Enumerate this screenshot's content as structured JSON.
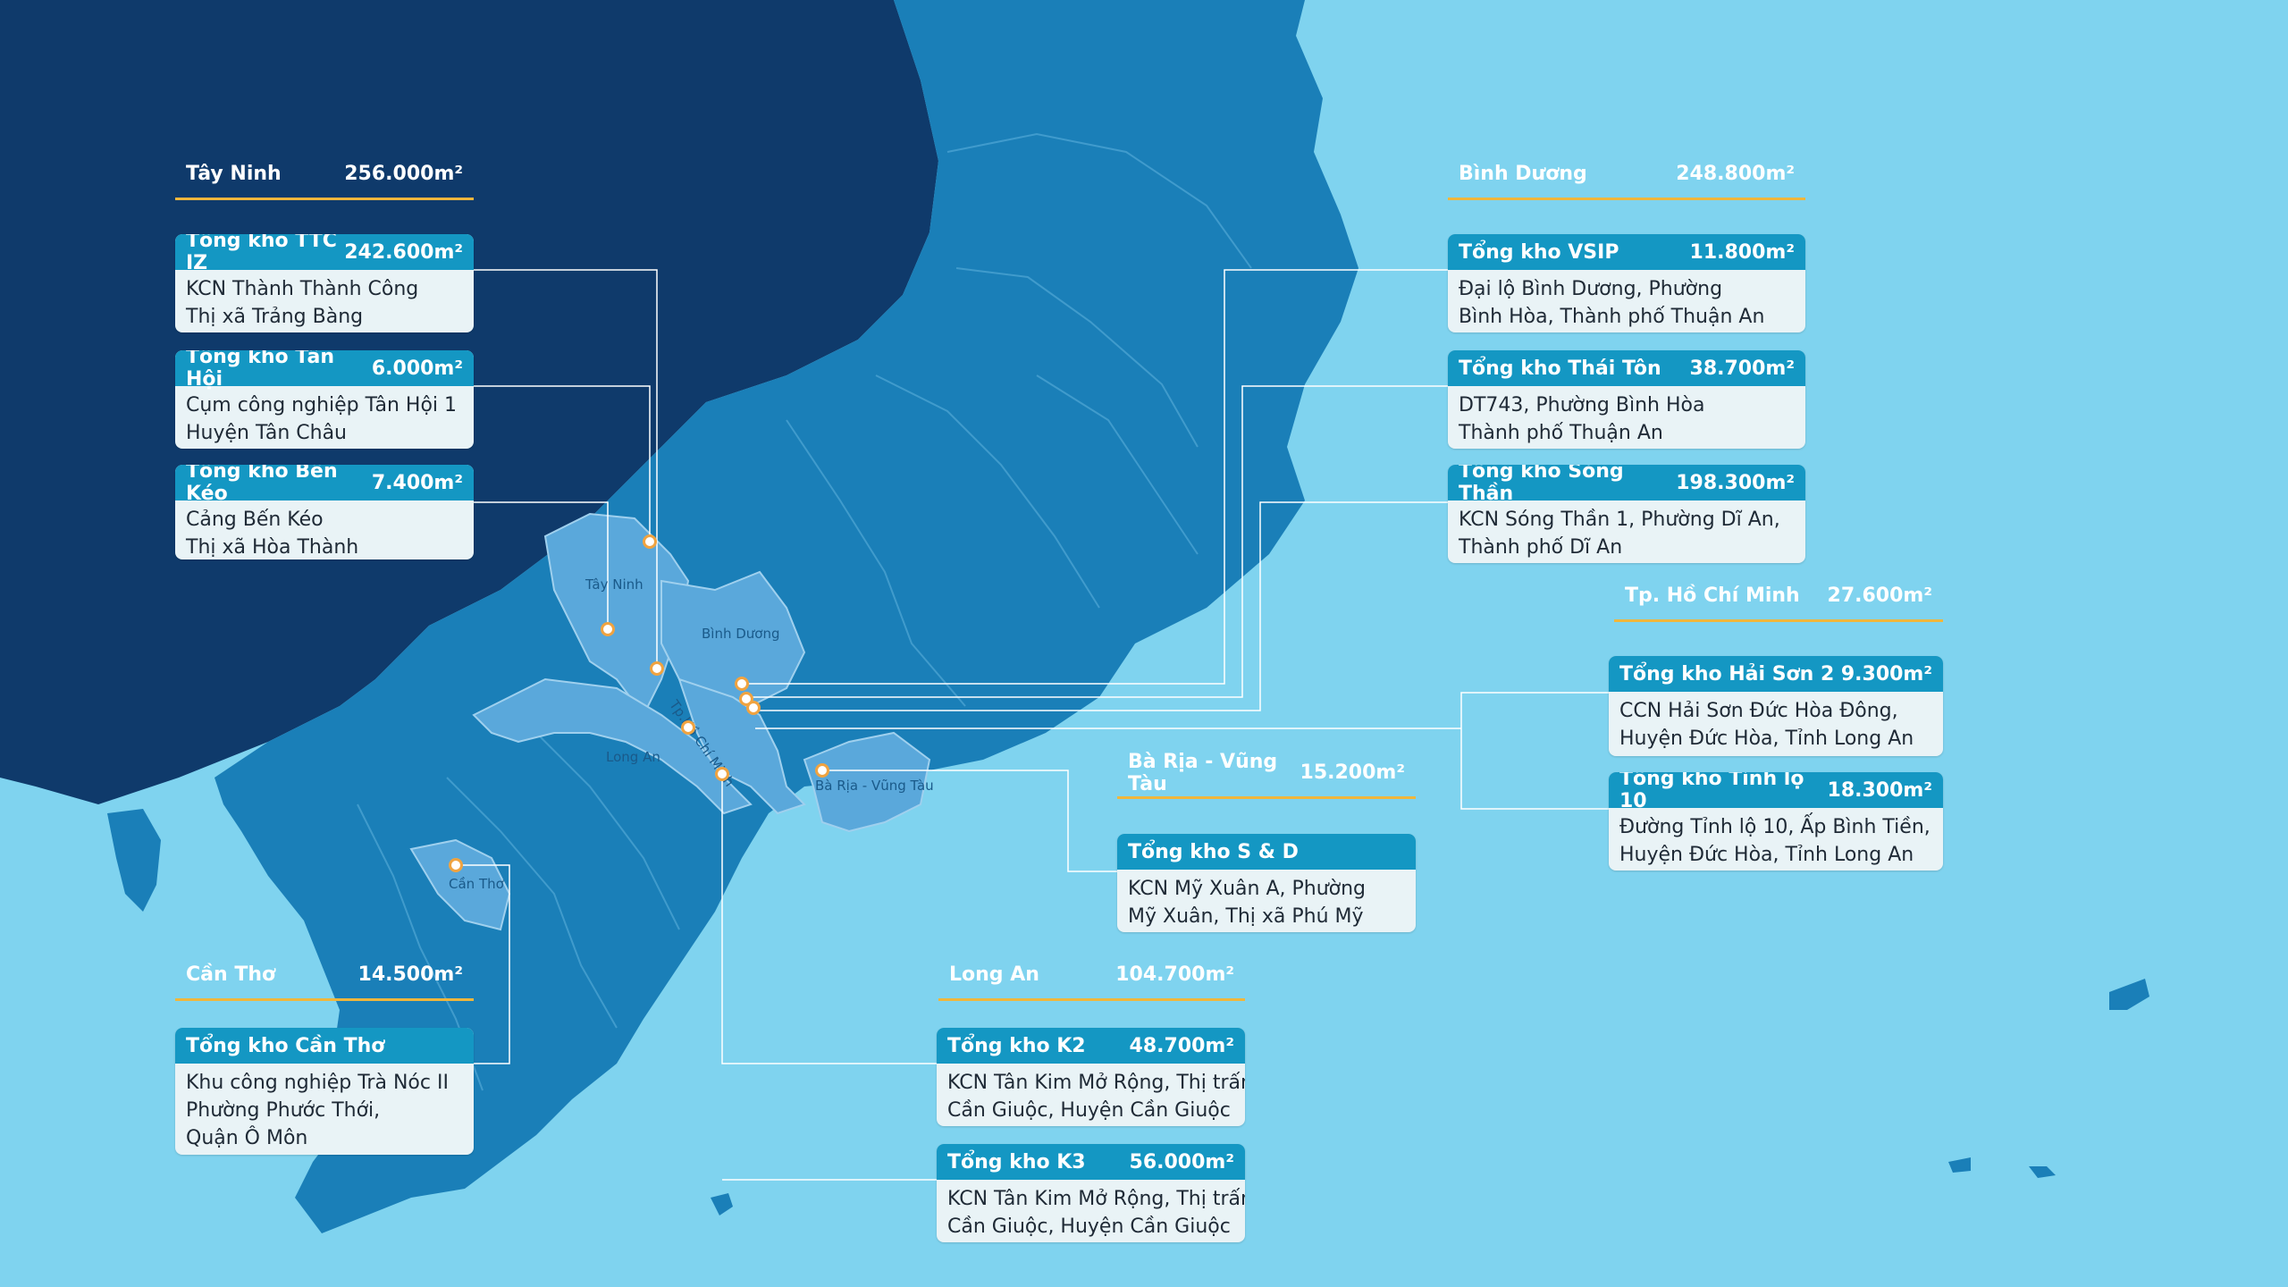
{
  "colors": {
    "sea": "#7fd3ef",
    "land_dark": "#0f3a6b",
    "land_mid": "#1a7fb8",
    "land_highlight": "#5aa8db",
    "card_header": "#1497c3",
    "card_body": "#e9f3f6",
    "accent_line": "#f0b63c",
    "pin": "#f0a340"
  },
  "map_labels": {
    "tay_ninh": "Tây Ninh",
    "binh_duong": "Bình Dương",
    "hcm": "Tp.Hồ Chí Minh",
    "long_an": "Long An",
    "br_vt": "Bà Rịa - Vũng Tàu",
    "can_tho": "Cần Thơ"
  },
  "regions": {
    "tay_ninh": {
      "name": "Tây Ninh",
      "area": "256.000m²"
    },
    "binh_duong": {
      "name": "Bình Dương",
      "area": "248.800m²"
    },
    "hcm": {
      "name": "Tp. Hồ Chí Minh",
      "area": "27.600m²"
    },
    "br_vt": {
      "name": "Bà Rịa - Vũng Tàu",
      "area": "15.200m²"
    },
    "long_an": {
      "name": "Long An",
      "area": "104.700m²"
    },
    "can_tho": {
      "name": "Cần Thơ",
      "area": "14.500m²"
    }
  },
  "warehouses": {
    "ttc_iz": {
      "name": "Tổng kho TTC  IZ",
      "area": "242.600m²",
      "line1": "KCN Thành Thành Công",
      "line2": "Thị xã Trảng Bàng"
    },
    "tan_hoi": {
      "name": "Tổng kho Tân Hội",
      "area": "6.000m²",
      "line1": "Cụm công nghiệp Tân Hội 1",
      "line2": "Huyện Tân Châu"
    },
    "ben_keo": {
      "name": "Tổng kho Bến Kéo",
      "area": "7.400m²",
      "line1": "Cảng Bến Kéo",
      "line2": "Thị xã Hòa Thành"
    },
    "vsip": {
      "name": "Tổng kho  VSIP",
      "area": "11.800m²",
      "line1": "Đại lộ Bình Dương, Phường",
      "line2": "Bình Hòa, Thành phố Thuận An"
    },
    "thai_ton": {
      "name": "Tổng kho Thái Tôn",
      "area": "38.700m²",
      "line1": "DT743, Phường Bình Hòa",
      "line2": "Thành phố Thuận An"
    },
    "song_than": {
      "name": "Tổng kho Sóng Thần",
      "area": "198.300m²",
      "line1": "KCN Sóng Thần 1, Phường Dĩ An,",
      "line2": "Thành phố Dĩ An"
    },
    "hai_son": {
      "name": "Tổng kho Hải Sơn 2",
      "area": "9.300m²",
      "line1": "CCN  Hải Sơn Đức Hòa Đông,",
      "line2": "Huyện Đức Hòa, Tỉnh Long An"
    },
    "tinh_lo": {
      "name": "Tổng kho Tỉnh lộ 10",
      "area": "18.300m²",
      "line1": "Đường Tỉnh lộ 10, Ấp Bình Tiền,",
      "line2": "Huyện Đức Hòa, Tỉnh Long An"
    },
    "sd": {
      "name": "Tổng kho S & D",
      "area": "",
      "line1": "KCN  Mỹ Xuân A, Phường",
      "line2": "Mỹ Xuân, Thị xã Phú Mỹ"
    },
    "k2": {
      "name": "Tổng kho K2",
      "area": "48.700m²",
      "line1": "KCN Tân Kim Mở Rộng, Thị trấn",
      "line2": "Cần Giuộc, Huyện Cần Giuộc"
    },
    "k3": {
      "name": "Tổng kho K3",
      "area": "56.000m²",
      "line1": "KCN Tân Kim Mở Rộng, Thị trấn",
      "line2": "Cần Giuộc, Huyện Cần Giuộc"
    },
    "can_tho": {
      "name": "Tổng kho Cần Thơ",
      "area": "",
      "line1": "Khu công nghiệp Trà Nóc II",
      "line2": "Phường Phước Thới,",
      "line3": "Quận Ô Môn"
    }
  }
}
